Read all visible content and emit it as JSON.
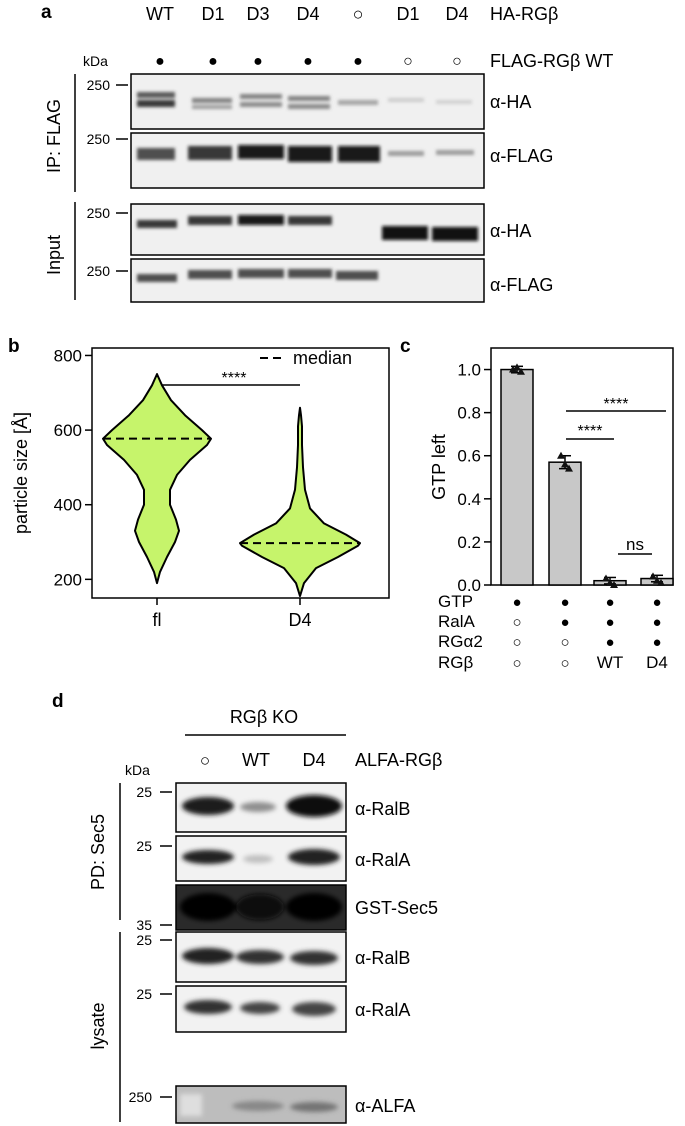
{
  "panel_a": {
    "letter": "a",
    "lanes": [
      "WT",
      "D1",
      "D3",
      "D4",
      "○",
      "D1",
      "D4"
    ],
    "row1_label": "HA-RGβ",
    "flag_symbols": [
      "●",
      "●",
      "●",
      "●",
      "●",
      "○",
      "○"
    ],
    "row2_label": "FLAG-RGβ WT",
    "kda": "kDa",
    "group_ip": "IP: FLAG",
    "group_input": "Input",
    "blots": [
      {
        "marker": "250",
        "antibody": "α-HA"
      },
      {
        "marker": "250",
        "antibody": "α-FLAG"
      },
      {
        "marker": "250",
        "antibody": "α-HA"
      },
      {
        "marker": "250",
        "antibody": "α-FLAG"
      }
    ]
  },
  "panel_b": {
    "letter": "b",
    "legend": "median",
    "sig": "****",
    "ylabel": "particle size [Å]",
    "yticks": [
      "800",
      "600",
      "400",
      "200"
    ],
    "xticks": [
      "fl",
      "D4"
    ]
  },
  "panel_c": {
    "letter": "c",
    "ylabel": "GTP left",
    "yticks": [
      "1.0",
      "0.8",
      "0.6",
      "0.4",
      "0.2",
      "0.0"
    ],
    "sig_long": "****",
    "sig_short": "****",
    "sig_ns": "ns",
    "table_rows": [
      {
        "label": "GTP",
        "cells": [
          "●",
          "●",
          "●",
          "●"
        ]
      },
      {
        "label": "RalA",
        "cells": [
          "○",
          "●",
          "●",
          "●"
        ]
      },
      {
        "label": "RGα2",
        "cells": [
          "○",
          "○",
          "●",
          "●"
        ]
      },
      {
        "label": "RGβ",
        "cells": [
          "○",
          "○",
          "WT",
          "D4"
        ]
      }
    ]
  },
  "panel_d": {
    "letter": "d",
    "header": "RGβ KO",
    "lanes": [
      "○",
      "WT",
      "D4"
    ],
    "row_label": "ALFA-RGβ",
    "kda": "kDa",
    "group_pd": "PD: Sec5",
    "group_lysate": "lysate",
    "blots": [
      {
        "marker": "25",
        "antibody": "α-RalB"
      },
      {
        "marker": "25",
        "antibody": "α-RalA"
      },
      {
        "marker": "35",
        "antibody": "GST-Sec5"
      },
      {
        "marker": "25",
        "antibody": "α-RalB"
      },
      {
        "marker": "25",
        "antibody": "α-RalA"
      },
      {
        "marker": "250",
        "antibody": "α-ALFA"
      }
    ]
  },
  "chart_data": [
    {
      "type": "violin",
      "title": "",
      "xlabel": "",
      "ylabel": "particle size [Å]",
      "ylim": [
        150,
        820
      ],
      "categories": [
        "fl",
        "D4"
      ],
      "medians": [
        577,
        297
      ],
      "ranges": [
        [
          190,
          750
        ],
        [
          155,
          660
        ]
      ],
      "significance": "****",
      "legend": "median",
      "fill_color": "#c6f46b"
    },
    {
      "type": "bar",
      "title": "",
      "ylabel": "GTP left",
      "ylim": [
        0,
        1.1
      ],
      "categories": [
        "1",
        "2",
        "3",
        "4"
      ],
      "values": [
        1.0,
        0.57,
        0.02,
        0.03
      ],
      "errors": [
        0.015,
        0.03,
        0.015,
        0.015
      ],
      "points": [
        [
          1.0,
          1.01,
          0.99
        ],
        [
          0.6,
          0.56,
          0.54
        ],
        [
          0.03,
          0.01,
          0.0
        ],
        [
          0.04,
          0.02,
          0.01
        ]
      ],
      "significance": [
        {
          "from": 2,
          "to": 3,
          "label": "****"
        },
        {
          "from": 2,
          "to": 4,
          "label": "****"
        },
        {
          "from": 3,
          "to": 4,
          "label": "ns"
        }
      ],
      "bar_color": "#c8c8c8"
    }
  ]
}
